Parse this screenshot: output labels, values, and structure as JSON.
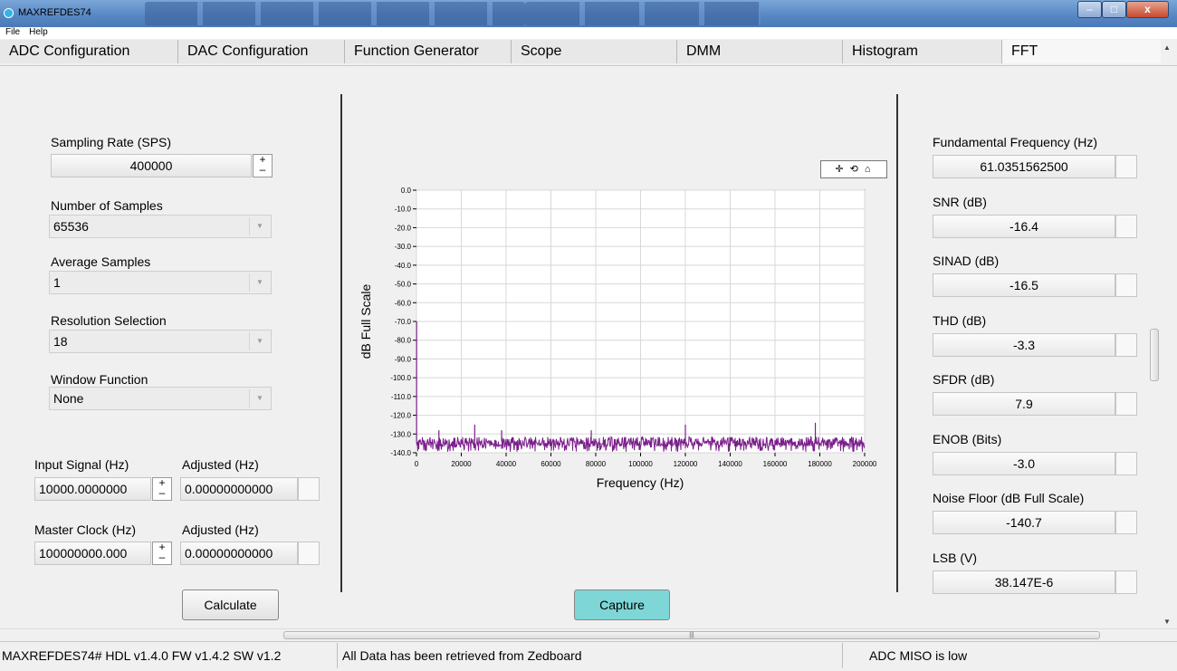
{
  "window": {
    "title": "MAXREFDES74",
    "minimize": "–",
    "maximize": "□",
    "close": "x"
  },
  "menu": [
    "File",
    "Help"
  ],
  "tabs": [
    "ADC Configuration",
    "DAC Configuration",
    "Function Generator",
    "Scope",
    "DMM",
    "Histogram",
    "FFT"
  ],
  "left": {
    "sampling_rate": {
      "label": "Sampling Rate (SPS)",
      "value": "400000"
    },
    "num_samples": {
      "label": "Number of Samples",
      "value": "65536"
    },
    "average_samples": {
      "label": "Average Samples",
      "value": "1"
    },
    "resolution": {
      "label": "Resolution Selection",
      "value": "18"
    },
    "window_function": {
      "label": "Window Function",
      "value": "None"
    },
    "input_signal": {
      "label": "Input Signal (Hz)",
      "value": "10000.0000000"
    },
    "input_adjusted": {
      "label": "Adjusted (Hz)",
      "value": "0.00000000000"
    },
    "master_clock": {
      "label": "Master Clock (Hz)",
      "value": "100000000.000"
    },
    "clock_adjusted": {
      "label": "Adjusted (Hz)",
      "value": "0.00000000000"
    },
    "calculate_label": "Calculate"
  },
  "capture_label": "Capture",
  "chart_toolbar": "✛ ⟲ ⌂",
  "metrics": [
    {
      "label": "Fundamental Frequency (Hz)",
      "value": "61.0351562500"
    },
    {
      "label": "SNR (dB)",
      "value": "-16.4"
    },
    {
      "label": "SINAD (dB)",
      "value": "-16.5"
    },
    {
      "label": "THD (dB)",
      "value": "-3.3"
    },
    {
      "label": "SFDR (dB)",
      "value": "7.9"
    },
    {
      "label": "ENOB (Bits)",
      "value": "-3.0"
    },
    {
      "label": "Noise Floor (dB Full Scale)",
      "value": "-140.7"
    },
    {
      "label": "LSB (V)",
      "value": "38.147E-6"
    }
  ],
  "status": {
    "version": "MAXREFDES74# HDL v1.4.0 FW v1.4.2 SW v1.2",
    "message": "All Data has been retrieved from Zedboard",
    "adc": "ADC MISO is low"
  },
  "colors": {
    "trace": "#7a1f8a",
    "capture_button": "#7fd6d6",
    "plot_bg": "#ffffff",
    "grid": "#d8d8d8"
  },
  "chart_data": {
    "type": "line",
    "xlabel": "Frequency (Hz)",
    "ylabel": "dB Full Scale",
    "xlim": [
      0,
      200000
    ],
    "ylim": [
      -140,
      0
    ],
    "x_ticks": [
      "0",
      "20000",
      "40000",
      "60000",
      "80000",
      "100000",
      "120000",
      "140000",
      "160000",
      "180000",
      "200000"
    ],
    "y_ticks": [
      "0.0",
      "-10.0",
      "-20.0",
      "-30.0",
      "-40.0",
      "-50.0",
      "-60.0",
      "-70.0",
      "-80.0",
      "-90.0",
      "-100.0",
      "-110.0",
      "-120.0",
      "-130.0",
      "-140.0"
    ],
    "noise_floor": -134,
    "peaks": [
      {
        "x": 61,
        "y": -70
      },
      {
        "x": 10000,
        "y": -128
      },
      {
        "x": 26000,
        "y": -125
      },
      {
        "x": 38000,
        "y": -128
      },
      {
        "x": 78000,
        "y": -128
      },
      {
        "x": 120000,
        "y": -125
      },
      {
        "x": 178000,
        "y": -124
      }
    ]
  }
}
